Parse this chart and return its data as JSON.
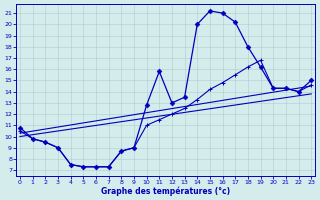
{
  "xlabel": "Graphe des températures (°c)",
  "xlim": [
    -0.3,
    23.3
  ],
  "ylim": [
    6.5,
    21.8
  ],
  "xticks": [
    0,
    1,
    2,
    3,
    4,
    5,
    6,
    7,
    8,
    9,
    10,
    11,
    12,
    13,
    14,
    15,
    16,
    17,
    18,
    19,
    20,
    21,
    22,
    23
  ],
  "yticks": [
    7,
    8,
    9,
    10,
    11,
    12,
    13,
    14,
    15,
    16,
    17,
    18,
    19,
    20,
    21
  ],
  "bg_color": "#d4ecec",
  "line_color": "#0000bb",
  "grid_color": "#b0cccc",
  "curve1_x": [
    0,
    1,
    2,
    3,
    4,
    5,
    6,
    7,
    8,
    9,
    10,
    11,
    12,
    13,
    14,
    15,
    16,
    17,
    18,
    19,
    20,
    21,
    22,
    23
  ],
  "curve1_y": [
    10.8,
    9.8,
    9.5,
    9.0,
    7.5,
    7.3,
    7.3,
    7.3,
    8.7,
    9.0,
    12.8,
    15.8,
    13.0,
    13.5,
    20.0,
    21.2,
    21.0,
    20.2,
    18.0,
    16.2,
    14.3,
    14.3,
    14.0,
    15.0
  ],
  "curve2_x": [
    0,
    1,
    2,
    3,
    4,
    5,
    6,
    7,
    8,
    9,
    10,
    11,
    12,
    13,
    14,
    15,
    16,
    17,
    18,
    19,
    20,
    21,
    22,
    23
  ],
  "curve2_y": [
    10.5,
    9.8,
    9.5,
    9.0,
    7.5,
    7.3,
    7.3,
    7.3,
    8.7,
    9.0,
    11.0,
    11.5,
    12.0,
    12.5,
    13.3,
    14.2,
    14.8,
    15.5,
    16.2,
    16.8,
    14.3,
    14.3,
    14.0,
    14.6
  ],
  "curve3_x": [
    0,
    23
  ],
  "curve3_y": [
    10.3,
    14.5
  ],
  "curve4_x": [
    0,
    23
  ],
  "curve4_y": [
    10.0,
    13.8
  ]
}
